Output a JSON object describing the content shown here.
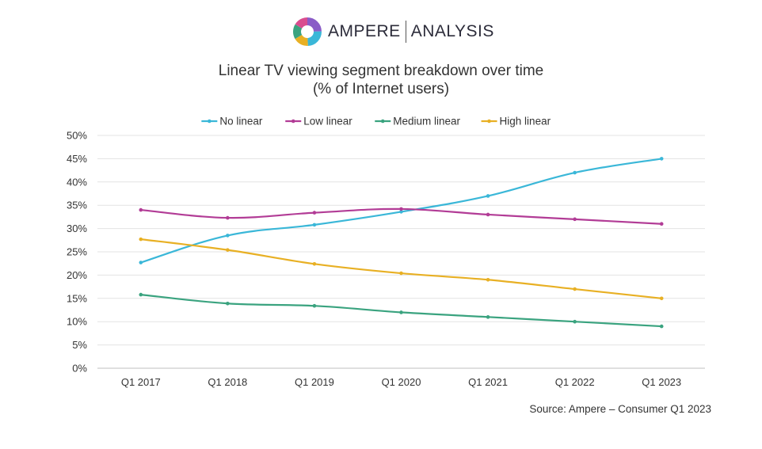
{
  "logo": {
    "brand": "AMPERE",
    "sub": "ANALYSIS"
  },
  "title_line1": "Linear TV viewing segment breakdown over time",
  "title_line2": "(% of Internet users)",
  "source": "Source: Ampere – Consumer Q1 2023",
  "chart_data": {
    "type": "line",
    "title": "Linear TV viewing segment breakdown over time (% of Internet users)",
    "categories": [
      "Q1 2017",
      "Q1 2018",
      "Q1 2019",
      "Q1 2020",
      "Q1 2021",
      "Q1 2022",
      "Q1 2023"
    ],
    "y_ticks": [
      "0%",
      "5%",
      "10%",
      "15%",
      "20%",
      "25%",
      "30%",
      "35%",
      "40%",
      "45%",
      "50%"
    ],
    "ylim": [
      0,
      50
    ],
    "grid": true,
    "legend_position": "top",
    "series": [
      {
        "name": "No linear",
        "color": "#3ab7d8",
        "values": [
          22.7,
          28.5,
          30.8,
          33.6,
          37.0,
          42.0,
          45.0
        ]
      },
      {
        "name": "Low linear",
        "color": "#b23c96",
        "values": [
          34.0,
          32.3,
          33.4,
          34.2,
          33.0,
          32.0,
          31.0
        ]
      },
      {
        "name": "Medium linear",
        "color": "#3aa37f",
        "values": [
          15.8,
          13.9,
          13.4,
          12.0,
          11.0,
          10.0,
          9.0
        ]
      },
      {
        "name": "High linear",
        "color": "#e8b024",
        "values": [
          27.7,
          25.4,
          22.4,
          20.4,
          19.0,
          17.0,
          15.0
        ]
      }
    ]
  }
}
